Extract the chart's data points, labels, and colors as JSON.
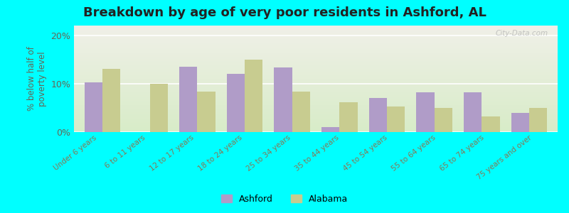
{
  "title": "Breakdown by age of very poor residents in Ashford, AL",
  "categories": [
    "Under 6 years",
    "6 to 11 years",
    "12 to 17 years",
    "18 to 24 years",
    "25 to 34 years",
    "35 to 44 years",
    "45 to 54 years",
    "55 to 64 years",
    "65 to 74 years",
    "75 years and over"
  ],
  "ashford_values": [
    10.3,
    0.0,
    13.5,
    12.0,
    13.3,
    1.0,
    7.0,
    8.2,
    8.2,
    4.0
  ],
  "alabama_values": [
    13.0,
    10.0,
    8.3,
    15.0,
    8.3,
    6.2,
    5.3,
    5.0,
    3.2,
    5.0
  ],
  "ashford_color": "#b09cc8",
  "alabama_color": "#c8cc90",
  "ylabel": "% below half of\npoverty level",
  "ylim": [
    0,
    22
  ],
  "yticks": [
    0,
    10,
    20
  ],
  "ytick_labels": [
    "0%",
    "10%",
    "20%"
  ],
  "bg_top": "#f0f0e8",
  "bg_bottom": "#d8ecc8",
  "outer_bg": "#00ffff",
  "title_fontsize": 13,
  "legend_labels": [
    "Ashford",
    "Alabama"
  ],
  "bar_width": 0.38,
  "grid_color": "#ffffff",
  "watermark": "City-Data.com"
}
